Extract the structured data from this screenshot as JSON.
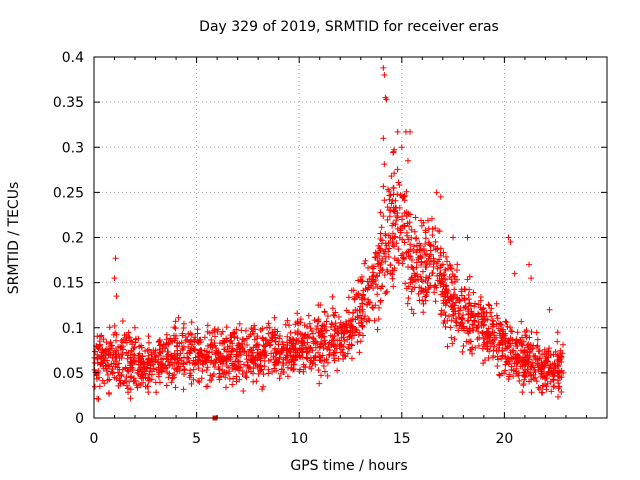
{
  "chart_data": {
    "type": "scatter",
    "title": "Day 329 of 2019, SRMTID for receiver eras",
    "xlabel": "GPS time / hours",
    "ylabel": "SRMTID / TECUs",
    "xlim": [
      0,
      25
    ],
    "ylim": [
      0,
      0.4
    ],
    "xticks": [
      0,
      5,
      10,
      15,
      20
    ],
    "xtick_labels": [
      "0",
      "5",
      "10",
      "15",
      "20"
    ],
    "yticks": [
      0,
      0.05,
      0.1,
      0.15,
      0.2,
      0.25,
      0.3,
      0.35,
      0.4
    ],
    "ytick_labels": [
      "0",
      "0.05",
      "0.1",
      "0.15",
      "0.2",
      "0.25",
      "0.3",
      "0.35",
      "0.4"
    ],
    "grid": true,
    "marker": "plus",
    "color": "#ff0000",
    "trend": {
      "x": [
        0,
        1,
        2,
        3,
        4,
        5,
        6,
        7,
        8,
        9,
        10,
        11,
        12,
        12.5,
        13,
        13.5,
        14,
        14.5,
        15,
        15.5,
        16,
        16.5,
        17,
        17.5,
        18,
        18.5,
        19,
        19.5,
        20,
        20.5,
        21,
        21.5,
        22,
        22.8
      ],
      "y": [
        0.06,
        0.07,
        0.062,
        0.06,
        0.07,
        0.07,
        0.065,
        0.07,
        0.072,
        0.07,
        0.078,
        0.085,
        0.09,
        0.1,
        0.125,
        0.14,
        0.17,
        0.22,
        0.2,
        0.18,
        0.165,
        0.17,
        0.15,
        0.13,
        0.12,
        0.105,
        0.1,
        0.09,
        0.08,
        0.07,
        0.065,
        0.06,
        0.055,
        0.055
      ]
    },
    "spread": {
      "x": [
        0,
        12,
        13.5,
        14.2,
        15,
        16,
        17,
        18,
        19,
        20,
        21,
        22.8
      ],
      "y": [
        0.028,
        0.03,
        0.04,
        0.07,
        0.06,
        0.045,
        0.04,
        0.035,
        0.03,
        0.028,
        0.025,
        0.025
      ]
    },
    "highlights": [
      {
        "x": 1.05,
        "y": 0.177
      },
      {
        "x": 1.0,
        "y": 0.155
      },
      {
        "x": 1.1,
        "y": 0.135
      },
      {
        "x": 14.1,
        "y": 0.388
      },
      {
        "x": 14.15,
        "y": 0.38
      },
      {
        "x": 14.2,
        "y": 0.355
      },
      {
        "x": 14.25,
        "y": 0.353
      },
      {
        "x": 14.1,
        "y": 0.31
      },
      {
        "x": 14.8,
        "y": 0.317
      },
      {
        "x": 15.2,
        "y": 0.317
      },
      {
        "x": 15.4,
        "y": 0.317
      },
      {
        "x": 15.0,
        "y": 0.3
      },
      {
        "x": 14.6,
        "y": 0.295
      },
      {
        "x": 15.3,
        "y": 0.285
      },
      {
        "x": 16.7,
        "y": 0.25
      },
      {
        "x": 16.9,
        "y": 0.245
      },
      {
        "x": 17.5,
        "y": 0.2
      },
      {
        "x": 18.2,
        "y": 0.2
      },
      {
        "x": 20.2,
        "y": 0.2
      },
      {
        "x": 20.3,
        "y": 0.195
      },
      {
        "x": 20.5,
        "y": 0.16
      },
      {
        "x": 21.2,
        "y": 0.17
      },
      {
        "x": 21.3,
        "y": 0.155
      },
      {
        "x": 22.2,
        "y": 0.12
      },
      {
        "x": 22.6,
        "y": 0.095
      }
    ],
    "series_points": [
      {
        "x": 5.9,
        "y": 0.0
      }
    ],
    "point_count": 2200,
    "x_end": 22.9,
    "seed": 329
  }
}
